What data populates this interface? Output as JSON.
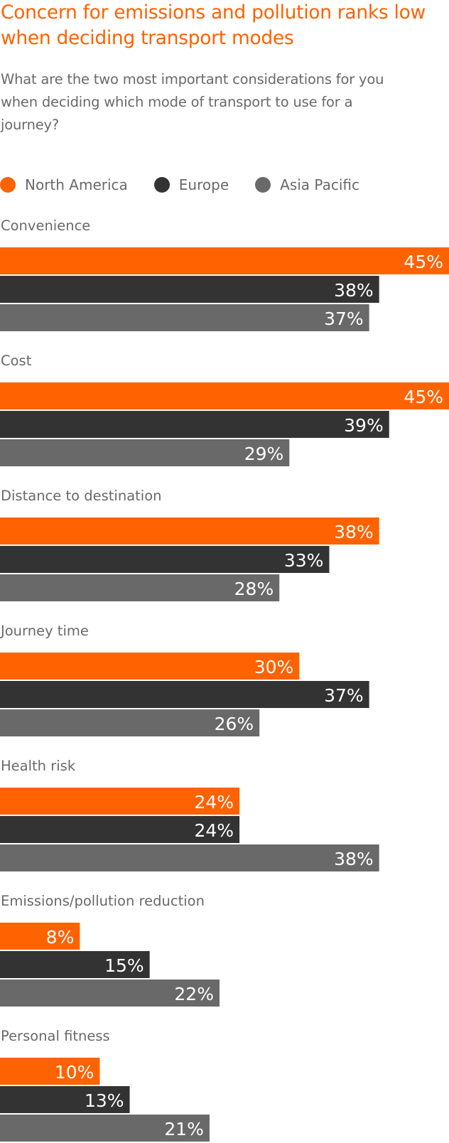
{
  "header": {
    "title": "Concern for emissions and pollution ranks low when deciding transport modes",
    "subtitle": "What are the two most important considerations for you when deciding which mode of transport to use for a journey?"
  },
  "colors": {
    "north_america": "#FF6200",
    "europe": "#333333",
    "asia_pacific": "#696969",
    "title": "#FF6200",
    "text": "#696969"
  },
  "chart_data": {
    "type": "bar",
    "orientation": "horizontal",
    "unit": "%",
    "xlim": [
      0,
      45
    ],
    "legend_position": "top",
    "grid": false,
    "categories": [
      "Convenience",
      "Cost",
      "Distance to destination",
      "Journey time",
      "Health risk",
      "Emissions/pollution reduction",
      "Personal fitness"
    ],
    "series": [
      {
        "name": "North America",
        "color": "#FF6200",
        "values": [
          45,
          45,
          38,
          30,
          24,
          8,
          10
        ]
      },
      {
        "name": "Europe",
        "color": "#333333",
        "values": [
          38,
          39,
          33,
          37,
          24,
          15,
          13
        ]
      },
      {
        "name": "Asia Pacific",
        "color": "#696969",
        "values": [
          37,
          29,
          28,
          26,
          38,
          22,
          21
        ]
      }
    ]
  }
}
